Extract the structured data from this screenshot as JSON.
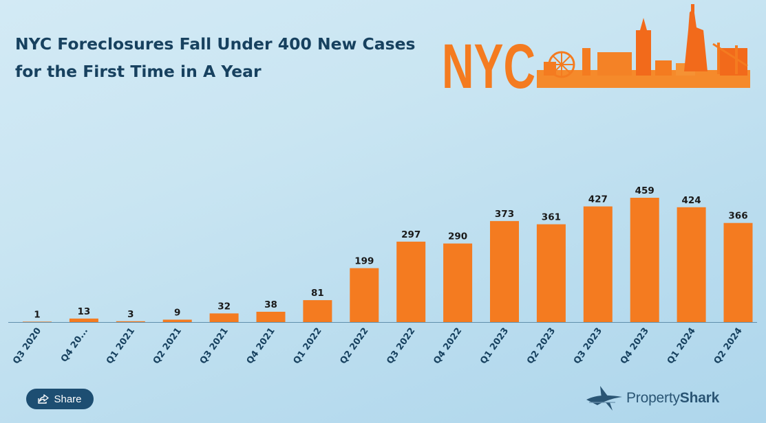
{
  "title": {
    "line1": "NYC Foreclosures Fall Under 400 New Cases",
    "line2": "for the First Time in A Year"
  },
  "logo_text": "NYC",
  "share_label": "Share",
  "brand": {
    "part1": "Property",
    "part2": "Shark"
  },
  "colors": {
    "bar": "#f47b20",
    "title": "#17415f",
    "label": "#1a1a1a",
    "tick": "#17415f",
    "axis": "#5f8eab",
    "share_bg": "#1d4e72"
  },
  "icons": [
    "share-icon",
    "shark-logo-icon"
  ],
  "chart_data": {
    "type": "bar",
    "title": "NYC Foreclosures Fall Under 400 New Cases for the First Time in A Year",
    "categories": [
      "Q3 2020",
      "Q4 20...",
      "Q1 2021",
      "Q2 2021",
      "Q3 2021",
      "Q4 2021",
      "Q1 2022",
      "Q2 2022",
      "Q3 2022",
      "Q4 2022",
      "Q1 2023",
      "Q2 2023",
      "Q3 2023",
      "Q4 2023",
      "Q1 2024",
      "Q2 2024"
    ],
    "values": [
      1,
      13,
      3,
      9,
      32,
      38,
      81,
      199,
      297,
      290,
      373,
      361,
      427,
      459,
      424,
      366
    ],
    "ylim": [
      0,
      459
    ],
    "grid": false,
    "legend": "none",
    "data_labels": true
  }
}
